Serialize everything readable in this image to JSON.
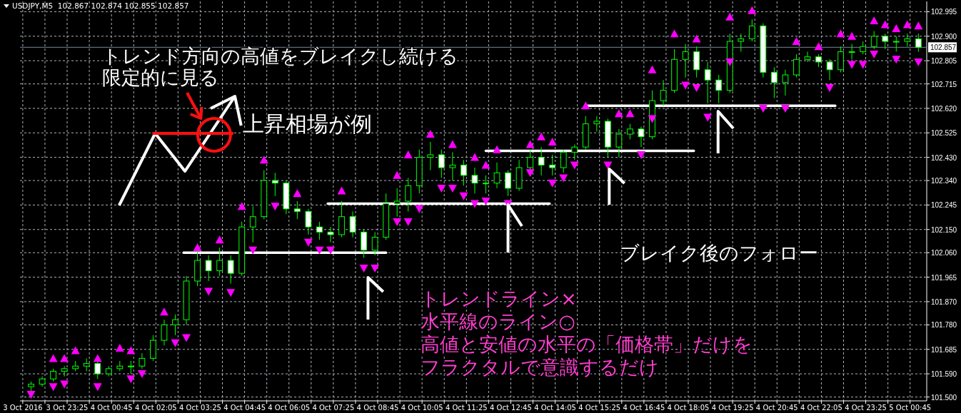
{
  "chart_data": {
    "type": "candlestick",
    "title": "USDJPY,M5  102.867 102.874 102.855 102.857",
    "color": "#00ff00",
    "grid": true,
    "xlim": [
      "2016-10-03T22:00",
      "2016-10-05T01:15"
    ],
    "ylim": [
      101.485,
      103.035
    ],
    "xticks": [
      {
        "value": "2016-10-03T22:05",
        "label": "3 Oct 2016"
      },
      {
        "value": "2016-10-03T22:45",
        "label": null
      },
      {
        "value": "2016-10-03T23:25",
        "label": "3 Oct 23:25"
      },
      {
        "value": "2016-10-04T00:05",
        "label": null
      },
      {
        "value": "2016-10-04T00:45",
        "label": "4 Oct 00:45"
      },
      {
        "value": "2016-10-04T01:25",
        "label": null
      },
      {
        "value": "2016-10-04T02:05",
        "label": "4 Oct 02:05"
      },
      {
        "value": "2016-10-04T02:45",
        "label": null
      },
      {
        "value": "2016-10-04T03:25",
        "label": "4 Oct 03:25"
      },
      {
        "value": "2016-10-04T04:05",
        "label": null
      },
      {
        "value": "2016-10-04T04:45",
        "label": "4 Oct 04:45"
      },
      {
        "value": "2016-10-04T05:25",
        "label": null
      },
      {
        "value": "2016-10-04T06:05",
        "label": "4 Oct 06:05"
      },
      {
        "value": "2016-10-04T06:45",
        "label": null
      },
      {
        "value": "2016-10-04T07:25",
        "label": "4 Oct 07:25"
      },
      {
        "value": "2016-10-04T08:05",
        "label": null
      },
      {
        "value": "2016-10-04T08:45",
        "label": "4 Oct 08:45"
      },
      {
        "value": "2016-10-04T09:25",
        "label": null
      },
      {
        "value": "2016-10-04T10:05",
        "label": "4 Oct 10:05"
      },
      {
        "value": "2016-10-04T10:45",
        "label": null
      },
      {
        "value": "2016-10-04T11:25",
        "label": "4 Oct 11:25"
      },
      {
        "value": "2016-10-04T12:05",
        "label": null
      },
      {
        "value": "2016-10-04T12:45",
        "label": "4 Oct 12:45"
      },
      {
        "value": "2016-10-04T13:25",
        "label": null
      },
      {
        "value": "2016-10-04T14:05",
        "label": "4 Oct 14:05"
      },
      {
        "value": "2016-10-04T14:45",
        "label": null
      },
      {
        "value": "2016-10-04T15:25",
        "label": "4 Oct 15:25"
      },
      {
        "value": "2016-10-04T16:05",
        "label": null
      },
      {
        "value": "2016-10-04T16:45",
        "label": "4 Oct 16:45"
      },
      {
        "value": "2016-10-04T17:25",
        "label": null
      },
      {
        "value": "2016-10-04T18:05",
        "label": "4 Oct 18:05"
      },
      {
        "value": "2016-10-04T18:45",
        "label": null
      },
      {
        "value": "2016-10-04T19:25",
        "label": "4 Oct 19:25"
      },
      {
        "value": "2016-10-04T20:05",
        "label": null
      },
      {
        "value": "2016-10-04T20:45",
        "label": "4 Oct 20:45"
      },
      {
        "value": "2016-10-04T21:25",
        "label": null
      },
      {
        "value": "2016-10-04T22:05",
        "label": "4 Oct 22:05"
      },
      {
        "value": "2016-10-04T22:45",
        "label": null
      },
      {
        "value": "2016-10-04T23:25",
        "label": "4 Oct 23:25"
      },
      {
        "value": "2016-10-05T00:05",
        "label": null
      },
      {
        "value": "2016-10-05T00:45",
        "label": "5 Oct 00:45"
      }
    ],
    "yticks": [
      {
        "value": 101.5,
        "label": "101.500"
      },
      {
        "value": 101.59,
        "label": "101.590"
      },
      {
        "value": 101.685,
        "label": "101.685"
      },
      {
        "value": 101.78,
        "label": "101.780"
      },
      {
        "value": 101.87,
        "label": "101.870"
      },
      {
        "value": 101.965,
        "label": "101.965"
      },
      {
        "value": 102.06,
        "label": "102.060"
      },
      {
        "value": 102.15,
        "label": "102.150"
      },
      {
        "value": 102.245,
        "label": "102.245"
      },
      {
        "value": 102.34,
        "label": "102.340"
      },
      {
        "value": 102.43,
        "label": "102.430"
      },
      {
        "value": 102.525,
        "label": "102.525"
      },
      {
        "value": 102.62,
        "label": "102.620"
      },
      {
        "value": 102.715,
        "label": "102.715"
      },
      {
        "value": 102.805,
        "label": "102.805"
      },
      {
        "value": 102.9,
        "label": "102.900"
      },
      {
        "value": 102.995,
        "label": "102.995"
      }
    ],
    "x": [
      "2016-10-03T22:20",
      "2016-10-03T22:40",
      "2016-10-03T23:00",
      "2016-10-03T23:20",
      "2016-10-03T23:40",
      "2016-10-04T00:00",
      "2016-10-04T00:20",
      "2016-10-04T00:40",
      "2016-10-04T01:00",
      "2016-10-04T01:20",
      "2016-10-04T01:40",
      "2016-10-04T02:00",
      "2016-10-04T02:20",
      "2016-10-04T02:40",
      "2016-10-04T03:00",
      "2016-10-04T03:20",
      "2016-10-04T03:40",
      "2016-10-04T04:00",
      "2016-10-04T04:20",
      "2016-10-04T04:40",
      "2016-10-04T05:00",
      "2016-10-04T05:20",
      "2016-10-04T05:40",
      "2016-10-04T06:00",
      "2016-10-04T06:20",
      "2016-10-04T06:40",
      "2016-10-04T07:00",
      "2016-10-04T07:20",
      "2016-10-04T07:40",
      "2016-10-04T08:00",
      "2016-10-04T08:20",
      "2016-10-04T08:40",
      "2016-10-04T09:00",
      "2016-10-04T09:20",
      "2016-10-04T09:40",
      "2016-10-04T10:00",
      "2016-10-04T10:20",
      "2016-10-04T10:40",
      "2016-10-04T11:00",
      "2016-10-04T11:20",
      "2016-10-04T11:40",
      "2016-10-04T12:00",
      "2016-10-04T12:20",
      "2016-10-04T12:40",
      "2016-10-04T13:00",
      "2016-10-04T13:20",
      "2016-10-04T13:40",
      "2016-10-04T14:00",
      "2016-10-04T14:20",
      "2016-10-04T14:40",
      "2016-10-04T15:00",
      "2016-10-04T15:20",
      "2016-10-04T15:40",
      "2016-10-04T16:00",
      "2016-10-04T16:20",
      "2016-10-04T16:40",
      "2016-10-04T17:00",
      "2016-10-04T17:20",
      "2016-10-04T17:40",
      "2016-10-04T18:00",
      "2016-10-04T18:20",
      "2016-10-04T18:40",
      "2016-10-04T19:00",
      "2016-10-04T19:20",
      "2016-10-04T19:40",
      "2016-10-04T20:00",
      "2016-10-04T20:20",
      "2016-10-04T20:40",
      "2016-10-04T21:00",
      "2016-10-04T21:20",
      "2016-10-04T21:40",
      "2016-10-04T22:00",
      "2016-10-04T22:20",
      "2016-10-04T22:40",
      "2016-10-04T23:00",
      "2016-10-04T23:20",
      "2016-10-04T23:40",
      "2016-10-05T00:00",
      "2016-10-05T00:20",
      "2016-10-05T00:40",
      "2016-10-05T01:00"
    ],
    "ohlc": [
      [
        101.54,
        101.56,
        101.52,
        101.55
      ],
      [
        101.55,
        101.58,
        101.54,
        101.57
      ],
      [
        101.57,
        101.61,
        101.56,
        101.6
      ],
      [
        101.6,
        101.62,
        101.58,
        101.61
      ],
      [
        101.61,
        101.64,
        101.6,
        101.62
      ],
      [
        101.62,
        101.65,
        101.6,
        101.63
      ],
      [
        101.63,
        101.64,
        101.57,
        101.59
      ],
      [
        101.59,
        101.62,
        101.58,
        101.61
      ],
      [
        101.61,
        101.64,
        101.6,
        101.62
      ],
      [
        101.62,
        101.64,
        101.59,
        101.62
      ],
      [
        101.62,
        101.67,
        101.61,
        101.65
      ],
      [
        101.65,
        101.74,
        101.64,
        101.72
      ],
      [
        101.72,
        101.8,
        101.7,
        101.78
      ],
      [
        101.78,
        101.82,
        101.74,
        101.8
      ],
      [
        101.8,
        101.97,
        101.78,
        101.95
      ],
      [
        101.95,
        102.07,
        101.93,
        102.03
      ],
      [
        102.03,
        102.05,
        101.95,
        101.99
      ],
      [
        101.99,
        102.08,
        101.97,
        102.03
      ],
      [
        102.03,
        102.05,
        101.94,
        101.98
      ],
      [
        101.98,
        102.18,
        101.97,
        102.16
      ],
      [
        102.16,
        102.24,
        102.1,
        102.2
      ],
      [
        102.2,
        102.38,
        102.19,
        102.34
      ],
      [
        102.34,
        102.37,
        102.28,
        102.33
      ],
      [
        102.33,
        102.34,
        102.21,
        102.23
      ],
      [
        102.23,
        102.26,
        102.19,
        102.22
      ],
      [
        102.22,
        102.23,
        102.13,
        102.16
      ],
      [
        102.16,
        102.18,
        102.11,
        102.14
      ],
      [
        102.14,
        102.16,
        102.1,
        102.13
      ],
      [
        102.13,
        102.26,
        102.12,
        102.2
      ],
      [
        102.2,
        102.22,
        102.12,
        102.14
      ],
      [
        102.14,
        102.15,
        102.04,
        102.07
      ],
      [
        102.07,
        102.14,
        102.05,
        102.12
      ],
      [
        102.12,
        102.29,
        102.11,
        102.25
      ],
      [
        102.25,
        102.31,
        102.2,
        102.26
      ],
      [
        102.26,
        102.35,
        102.22,
        102.32
      ],
      [
        102.32,
        102.46,
        102.29,
        102.43
      ],
      [
        102.43,
        102.49,
        102.38,
        102.44
      ],
      [
        102.44,
        102.46,
        102.35,
        102.39
      ],
      [
        102.39,
        102.45,
        102.34,
        102.4
      ],
      [
        102.4,
        102.42,
        102.32,
        102.36
      ],
      [
        102.36,
        102.39,
        102.29,
        102.33
      ],
      [
        102.33,
        102.36,
        102.29,
        102.33
      ],
      [
        102.33,
        102.41,
        102.31,
        102.37
      ],
      [
        102.37,
        102.38,
        102.28,
        102.31
      ],
      [
        102.31,
        102.42,
        102.3,
        102.39
      ],
      [
        102.39,
        102.46,
        102.38,
        102.43
      ],
      [
        102.43,
        102.47,
        102.36,
        102.4
      ],
      [
        102.4,
        102.44,
        102.36,
        102.39
      ],
      [
        102.39,
        102.46,
        102.37,
        102.45
      ],
      [
        102.45,
        102.48,
        102.42,
        102.47
      ],
      [
        102.47,
        102.59,
        102.46,
        102.56
      ],
      [
        102.56,
        102.59,
        102.53,
        102.57
      ],
      [
        102.57,
        102.58,
        102.43,
        102.47
      ],
      [
        102.47,
        102.54,
        102.43,
        102.52
      ],
      [
        102.52,
        102.56,
        102.5,
        102.54
      ],
      [
        102.54,
        102.55,
        102.47,
        102.51
      ],
      [
        102.51,
        102.69,
        102.5,
        102.65
      ],
      [
        102.65,
        102.73,
        102.63,
        102.69
      ],
      [
        102.69,
        102.85,
        102.68,
        102.81
      ],
      [
        102.81,
        102.87,
        102.74,
        102.84
      ],
      [
        102.84,
        102.86,
        102.74,
        102.77
      ],
      [
        102.77,
        102.8,
        102.64,
        102.73
      ],
      [
        102.73,
        102.75,
        102.64,
        102.69
      ],
      [
        102.69,
        102.91,
        102.68,
        102.88
      ],
      [
        102.88,
        102.91,
        102.84,
        102.89
      ],
      [
        102.89,
        102.965,
        102.88,
        102.94
      ],
      [
        102.94,
        102.95,
        102.74,
        102.76
      ],
      [
        102.76,
        102.78,
        102.66,
        102.72
      ],
      [
        102.72,
        102.77,
        102.67,
        102.75
      ],
      [
        102.75,
        102.83,
        102.74,
        102.81
      ],
      [
        102.81,
        102.84,
        102.8,
        102.82
      ],
      [
        102.82,
        102.83,
        102.78,
        102.8
      ],
      [
        102.8,
        102.81,
        102.73,
        102.77
      ],
      [
        102.77,
        102.86,
        102.76,
        102.84
      ],
      [
        102.84,
        102.87,
        102.81,
        102.84
      ],
      [
        102.84,
        102.88,
        102.83,
        102.86
      ],
      [
        102.86,
        102.92,
        102.85,
        102.9
      ],
      [
        102.9,
        102.91,
        102.85,
        102.88
      ],
      [
        102.88,
        102.9,
        102.84,
        102.88
      ],
      [
        102.88,
        102.91,
        102.86,
        102.89
      ],
      [
        102.89,
        102.91,
        102.84,
        102.857
      ]
    ],
    "series": [
      {
        "type": "scatter",
        "marker": "triangle",
        "color": "#ff00ff",
        "x": [
          "2016-10-03T23:00",
          "2016-10-03T23:20",
          "2016-10-03T23:40",
          "2016-10-04T00:20",
          "2016-10-04T01:00",
          "2016-10-04T01:20",
          "2016-10-04T02:20",
          "2016-10-04T03:20",
          "2016-10-04T04:00",
          "2016-10-04T04:40",
          "2016-10-04T05:20",
          "2016-10-04T06:20",
          "2016-10-04T07:40",
          "2016-10-04T09:20",
          "2016-10-04T09:40",
          "2016-10-04T10:20",
          "2016-10-04T11:00",
          "2016-10-04T11:40",
          "2016-10-04T12:00",
          "2016-10-04T12:20",
          "2016-10-04T13:20",
          "2016-10-04T13:40",
          "2016-10-04T14:00",
          "2016-10-04T15:00",
          "2016-10-04T16:00",
          "2016-10-04T16:20",
          "2016-10-04T17:00",
          "2016-10-04T17:40",
          "2016-10-04T18:20",
          "2016-10-04T19:20",
          "2016-10-04T20:00",
          "2016-10-04T21:20",
          "2016-10-04T22:00",
          "2016-10-04T22:40",
          "2016-10-04T23:00",
          "2016-10-04T23:40",
          "2016-10-05T00:00",
          "2016-10-05T00:20",
          "2016-10-05T00:40",
          "2016-10-05T01:00"
        ],
        "values": [
          101.65,
          101.65,
          101.68,
          101.65,
          101.69,
          101.68,
          101.83,
          102.08,
          102.11,
          102.24,
          102.42,
          102.29,
          102.3,
          102.36,
          102.44,
          102.52,
          102.48,
          102.43,
          102.4,
          102.46,
          102.48,
          102.51,
          102.49,
          102.63,
          102.6,
          102.6,
          102.77,
          102.91,
          102.89,
          102.975,
          103.0,
          102.88,
          102.86,
          102.91,
          102.9,
          102.96,
          102.945,
          102.93,
          102.945,
          102.94
        ]
      },
      {
        "type": "scatter",
        "marker": "triangle",
        "color": "#ff00ff",
        "x": [
          "2016-10-03T22:20",
          "2016-10-03T23:00",
          "2016-10-03T23:20",
          "2016-10-04T00:20",
          "2016-10-04T01:20",
          "2016-10-04T01:40",
          "2016-10-04T02:40",
          "2016-10-04T03:00",
          "2016-10-04T03:40",
          "2016-10-04T04:20",
          "2016-10-04T05:00",
          "2016-10-04T05:40",
          "2016-10-04T06:40",
          "2016-10-04T07:00",
          "2016-10-04T07:20",
          "2016-10-04T08:20",
          "2016-10-04T08:40",
          "2016-10-04T09:20",
          "2016-10-04T09:40",
          "2016-10-04T10:00",
          "2016-10-04T10:40",
          "2016-10-04T11:00",
          "2016-10-04T11:20",
          "2016-10-04T11:40",
          "2016-10-04T12:00",
          "2016-10-04T12:40",
          "2016-10-04T13:20",
          "2016-10-04T14:00",
          "2016-10-04T14:20",
          "2016-10-04T14:40",
          "2016-10-04T15:40",
          "2016-10-04T16:40",
          "2016-10-04T17:00",
          "2016-10-04T18:00",
          "2016-10-04T18:20",
          "2016-10-04T18:40",
          "2016-10-04T19:20",
          "2016-10-04T20:20",
          "2016-10-04T21:00",
          "2016-10-04T22:20",
          "2016-10-04T23:00",
          "2016-10-04T23:20",
          "2016-10-04T23:40",
          "2016-10-05T00:20",
          "2016-10-05T01:00"
        ],
        "values": [
          101.51,
          101.54,
          101.55,
          101.54,
          101.57,
          101.59,
          101.71,
          101.73,
          101.91,
          101.905,
          102.07,
          102.24,
          102.1,
          102.07,
          102.07,
          102.0,
          102.0,
          102.18,
          102.18,
          102.23,
          102.31,
          102.31,
          102.28,
          102.25,
          102.26,
          102.25,
          102.37,
          102.33,
          102.35,
          102.4,
          102.4,
          102.44,
          102.58,
          102.71,
          102.7,
          102.585,
          102.8,
          102.62,
          102.62,
          102.7,
          102.79,
          102.79,
          102.83,
          102.81,
          102.8
        ]
      },
      {
        "type": "line",
        "color": "#ffffff",
        "x": [
          "2016-10-04T02:55",
          "2016-10-04T09:00"
        ],
        "values": [
          102.06,
          102.06
        ]
      },
      {
        "type": "line",
        "color": "#ffffff",
        "x": [
          "2016-10-04T07:15",
          "2016-10-04T13:55"
        ],
        "values": [
          102.25,
          102.25
        ]
      },
      {
        "type": "line",
        "color": "#ffffff",
        "x": [
          "2016-10-04T12:00",
          "2016-10-04T18:15"
        ],
        "values": [
          102.455,
          102.455
        ]
      },
      {
        "type": "line",
        "color": "#ffffff",
        "x": [
          "2016-10-04T15:00",
          "2016-10-04T22:30"
        ],
        "values": [
          102.63,
          102.63
        ]
      }
    ],
    "ref_lines": [
      {
        "axis": "y",
        "value": 102.857,
        "label": "102.857",
        "color": "#778899"
      }
    ],
    "annotations": [
      "トレンド方向の高値をブレイクし続ける",
      "限定的に見る",
      "上昇相場が例",
      "ブレイク後のフォロー",
      "トレンドライン×",
      "水平線のライン○",
      "高値と安値の水平の「価格帯」だけを",
      "フラクタルで意識するだけ"
    ]
  }
}
